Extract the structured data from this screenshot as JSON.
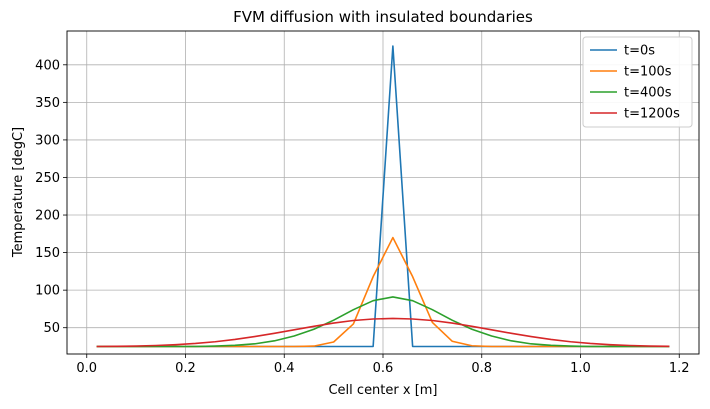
{
  "chart_data": {
    "type": "line",
    "title": "FVM diffusion with insulated boundaries",
    "xlabel": "Cell center x [m]",
    "ylabel": "Temperature [degC]",
    "xlim": [
      -0.04,
      1.24
    ],
    "ylim": [
      15,
      445
    ],
    "xticks": [
      0.0,
      0.2,
      0.4,
      0.6,
      0.8,
      1.0,
      1.2
    ],
    "xtick_labels": [
      "0.0",
      "0.2",
      "0.4",
      "0.6",
      "0.8",
      "1.0",
      "1.2"
    ],
    "yticks": [
      50,
      100,
      150,
      200,
      250,
      300,
      350,
      400
    ],
    "ytick_labels": [
      "50",
      "100",
      "150",
      "200",
      "250",
      "300",
      "350",
      "400"
    ],
    "grid": true,
    "legend_position": "top-right",
    "x": [
      0.02,
      0.06,
      0.1,
      0.14,
      0.18,
      0.22,
      0.26,
      0.3,
      0.34,
      0.38,
      0.42,
      0.46,
      0.5,
      0.54,
      0.58,
      0.62,
      0.66,
      0.7,
      0.74,
      0.78,
      0.82,
      0.86,
      0.9,
      0.94,
      0.98,
      1.02,
      1.06,
      1.1,
      1.14,
      1.18
    ],
    "series": [
      {
        "name": "t=0s",
        "color": "#1f77b4",
        "values": [
          25,
          25,
          25,
          25,
          25,
          25,
          25,
          25,
          25,
          25,
          25,
          25,
          25,
          25,
          25,
          425,
          25,
          25,
          25,
          25,
          25,
          25,
          25,
          25,
          25,
          25,
          25,
          25,
          25,
          25
        ]
      },
      {
        "name": "t=100s",
        "color": "#ff7f0e",
        "values": [
          25,
          25,
          25,
          25,
          25,
          25,
          25,
          25,
          25,
          25,
          25,
          25.5,
          31,
          55,
          118,
          170,
          118,
          57,
          32,
          26,
          25,
          25,
          25,
          25,
          25,
          25,
          25,
          25,
          25,
          25
        ]
      },
      {
        "name": "t=400s",
        "color": "#2ca02c",
        "values": [
          25,
          25,
          25,
          25,
          25,
          25,
          25.5,
          26.5,
          28.5,
          32.5,
          39,
          48,
          60,
          74,
          86,
          91,
          86,
          74,
          60,
          48,
          39,
          32.5,
          28.5,
          26.5,
          25.5,
          25,
          25,
          25,
          25,
          25
        ]
      },
      {
        "name": "t=1200s",
        "color": "#d62728",
        "values": [
          25,
          25.2,
          25.6,
          26.3,
          27.4,
          29,
          31.3,
          34.4,
          38.2,
          42.5,
          47.2,
          51.9,
          56.2,
          59.6,
          61.6,
          62.3,
          61.6,
          59.6,
          56.2,
          51.9,
          47.2,
          42.5,
          38.2,
          34.4,
          31.3,
          29,
          27.4,
          26.3,
          25.6,
          25.2
        ]
      }
    ]
  }
}
